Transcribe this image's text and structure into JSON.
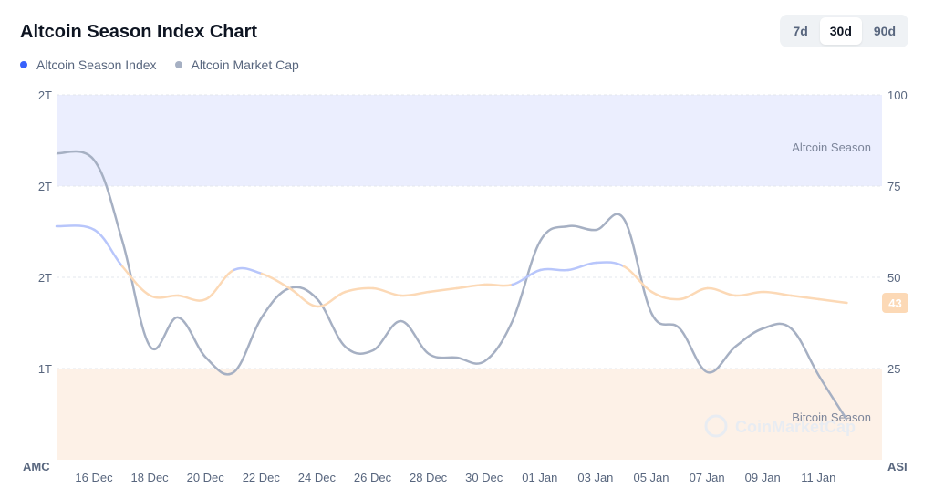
{
  "header": {
    "title": "Altcoin Season Index Chart"
  },
  "legend": [
    {
      "label": "Altcoin Season Index",
      "color": "#3861fb"
    },
    {
      "label": "Altcoin Market Cap",
      "color": "#a6b0c3"
    }
  ],
  "range_tabs": [
    {
      "label": "7d",
      "active": false
    },
    {
      "label": "30d",
      "active": true
    },
    {
      "label": "90d",
      "active": false
    }
  ],
  "watermark": "CoinMarketCap",
  "chart_data": {
    "type": "line",
    "x": [
      "16 Dec",
      "17 Dec",
      "18 Dec",
      "19 Dec",
      "20 Dec",
      "21 Dec",
      "22 Dec",
      "23 Dec",
      "24 Dec",
      "25 Dec",
      "26 Dec",
      "27 Dec",
      "28 Dec",
      "29 Dec",
      "30 Dec",
      "31 Dec",
      "01 Jan",
      "02 Jan",
      "03 Jan",
      "04 Jan",
      "05 Jan",
      "06 Jan",
      "07 Jan",
      "08 Jan",
      "09 Jan",
      "10 Jan",
      "11 Jan",
      "12 Jan",
      "13 Jan"
    ],
    "x_tick_labels": [
      "16 Dec",
      "18 Dec",
      "20 Dec",
      "22 Dec",
      "24 Dec",
      "26 Dec",
      "28 Dec",
      "30 Dec",
      "01 Jan",
      "03 Jan",
      "05 Jan",
      "07 Jan",
      "09 Jan",
      "11 Jan"
    ],
    "series": [
      {
        "name": "Altcoin Season Index",
        "axis": "right",
        "y": [
          64,
          63,
          53,
          45,
          45,
          44,
          52,
          51,
          47,
          42,
          46,
          47,
          45,
          46,
          47,
          48,
          48,
          52,
          52,
          54,
          53,
          46,
          44,
          47,
          45,
          46,
          45,
          44,
          43
        ]
      },
      {
        "name": "Altcoin Market Cap",
        "axis": "left",
        "y_on_right_scale": [
          84,
          82,
          60,
          31,
          39,
          28,
          24,
          39,
          47,
          44,
          31,
          30,
          38,
          29,
          28,
          27,
          38,
          60,
          64,
          63,
          66,
          40,
          36,
          24,
          31,
          36,
          36,
          23,
          11
        ]
      }
    ],
    "left_axis": {
      "title": "AMC",
      "tick_labels": [
        "1T",
        "2T",
        "2T",
        "2T"
      ]
    },
    "right_axis": {
      "title": "ASI",
      "ylim": [
        0,
        100
      ],
      "ticks": [
        25,
        50,
        75,
        100
      ]
    },
    "zones": [
      {
        "label": "Altcoin Season",
        "from": 75,
        "to": 100,
        "color": "#ebeefe"
      },
      {
        "label": "Bitcoin Season",
        "from": 0,
        "to": 25,
        "color": "#fdf1e7"
      }
    ],
    "current_value": 43,
    "grid": true
  }
}
